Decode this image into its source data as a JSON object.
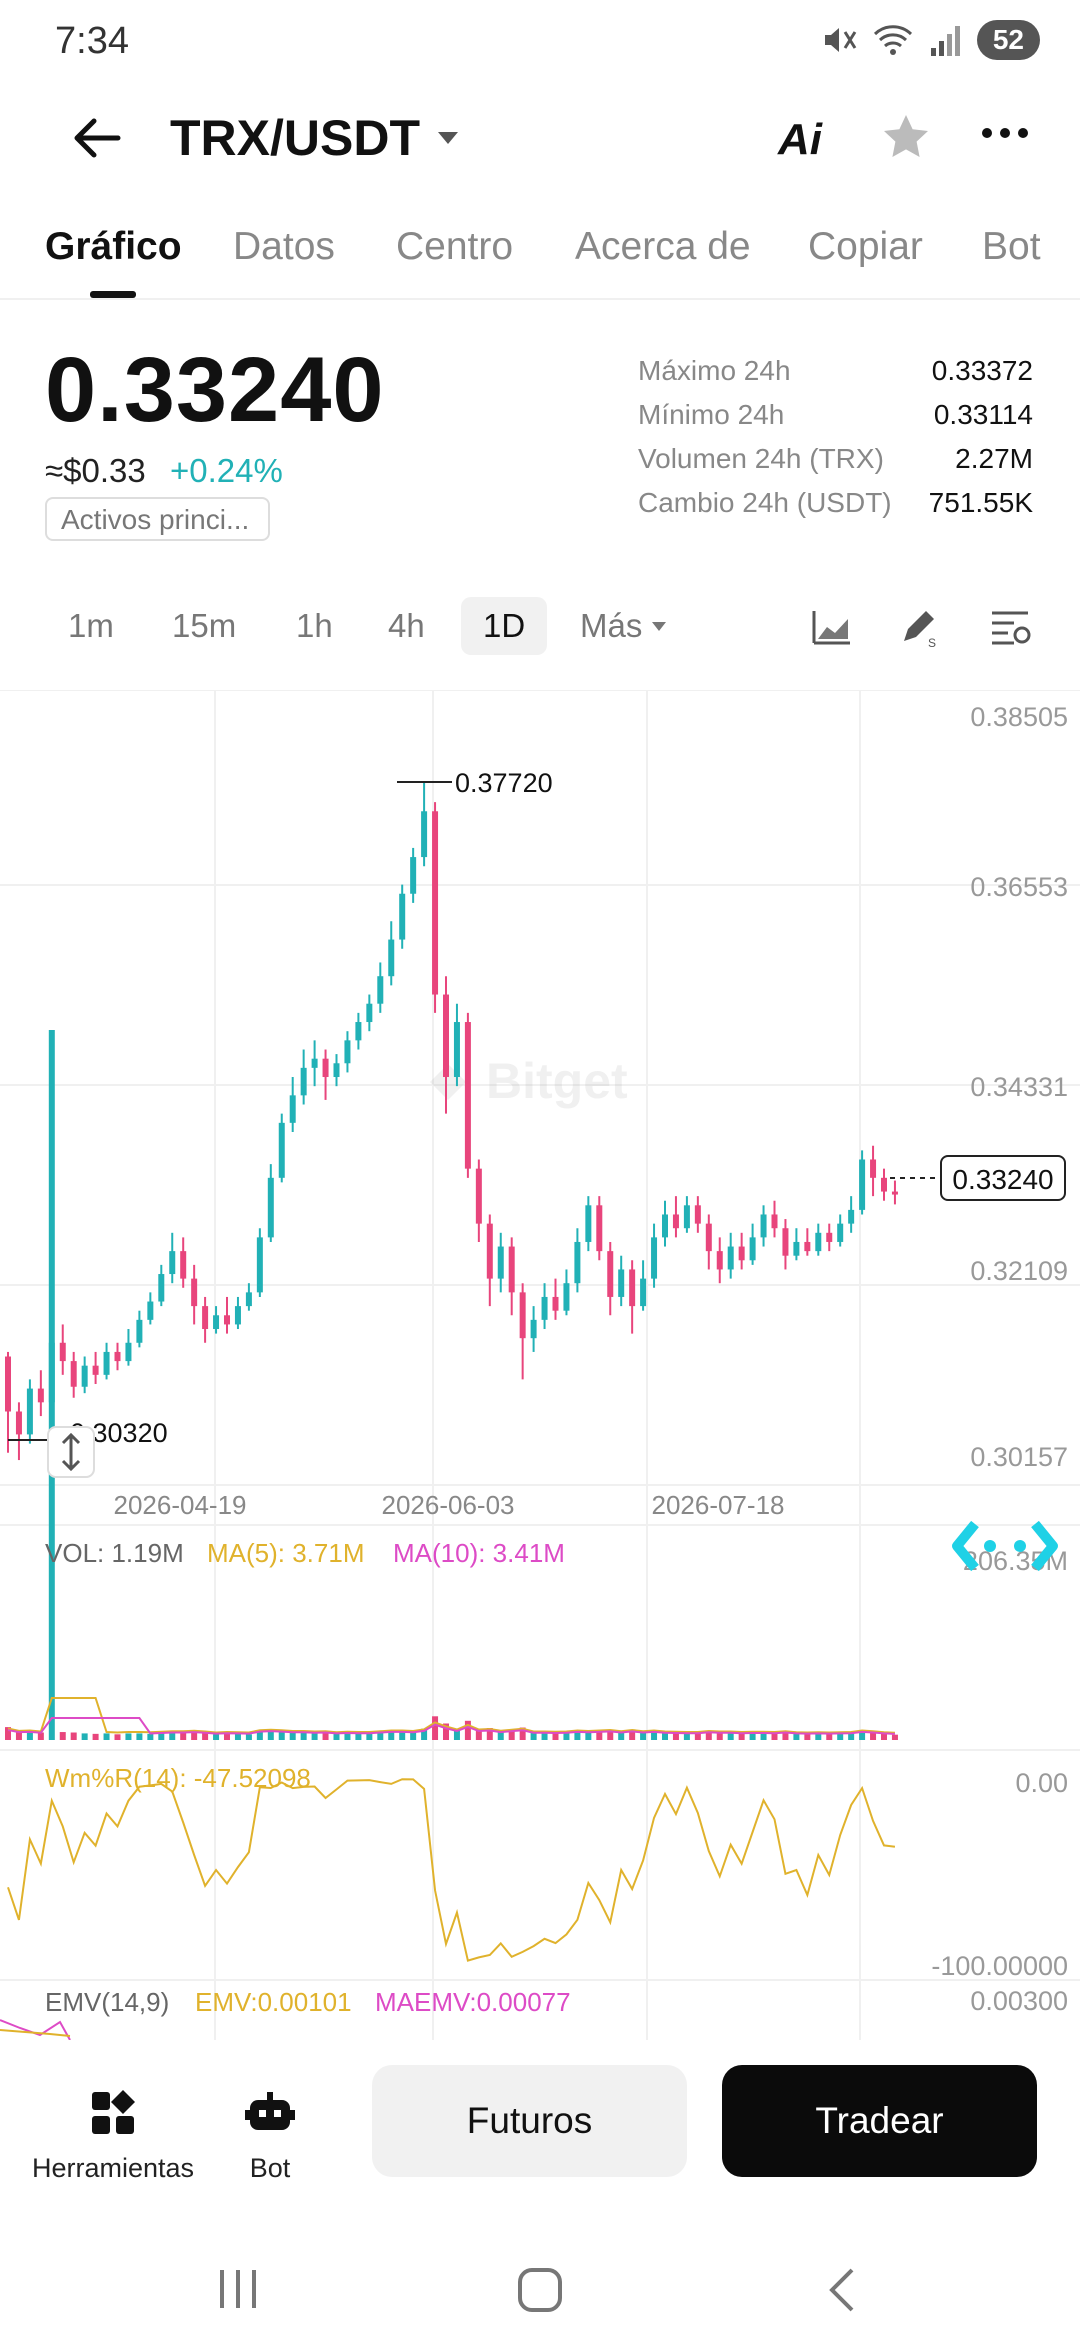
{
  "status": {
    "time": "7:34",
    "battery": "52"
  },
  "header": {
    "pair": "TRX/USDT",
    "ai_label": "Ai"
  },
  "tabs": [
    "Gráfico",
    "Datos",
    "Centro",
    "Acerca de",
    "Copiar",
    "Bot"
  ],
  "price": {
    "last": "0.33240",
    "usd": "≈$0.33",
    "change": "+0.24%",
    "tag": "Activos princi...",
    "stats": [
      {
        "label": "Máximo 24h",
        "value": "0.33372"
      },
      {
        "label": "Mínimo 24h",
        "value": "0.33114"
      },
      {
        "label": "Volumen 24h (TRX)",
        "value": "2.27M"
      },
      {
        "label": "Cambio 24h (USDT)",
        "value": "751.55K"
      }
    ]
  },
  "timeframes": {
    "items": [
      "1m",
      "15m",
      "1h",
      "4h",
      "1D"
    ],
    "active": "1D",
    "more": "Más"
  },
  "chart": {
    "watermark": "Bitget",
    "y_ticks": [
      "0.38505",
      "0.36553",
      "0.34331",
      "0.32109",
      "0.30157"
    ],
    "x_ticks": [
      "2026-04-19",
      "2026-06-03",
      "2026-07-18"
    ],
    "high_marker": "0.37720",
    "low_marker": "0.30320",
    "last_price": "0.33240",
    "colors": {
      "up": "#21b1b6",
      "down": "#e8457c",
      "ma5": "#e0b22c",
      "ma10": "#dd4bc6"
    }
  },
  "chart_data": {
    "type": "candlestick",
    "y_range": [
      0.30157,
      0.38505
    ],
    "candles": [
      {
        "o": 0.3145,
        "c": 0.3085,
        "h": 0.315,
        "l": 0.304
      },
      {
        "o": 0.3085,
        "c": 0.306,
        "h": 0.3095,
        "l": 0.3032
      },
      {
        "o": 0.306,
        "c": 0.311,
        "h": 0.312,
        "l": 0.305
      },
      {
        "o": 0.311,
        "c": 0.3095,
        "h": 0.313,
        "l": 0.308
      },
      {
        "o": 0.3095,
        "c": 0.316,
        "h": 0.318,
        "l": 0.309
      },
      {
        "o": 0.316,
        "c": 0.314,
        "h": 0.318,
        "l": 0.3125
      },
      {
        "o": 0.314,
        "c": 0.3112,
        "h": 0.315,
        "l": 0.31
      },
      {
        "o": 0.3112,
        "c": 0.3135,
        "h": 0.3145,
        "l": 0.3105
      },
      {
        "o": 0.3135,
        "c": 0.3125,
        "h": 0.315,
        "l": 0.3115
      },
      {
        "o": 0.3125,
        "c": 0.315,
        "h": 0.316,
        "l": 0.312
      },
      {
        "o": 0.315,
        "c": 0.314,
        "h": 0.316,
        "l": 0.313
      },
      {
        "o": 0.314,
        "c": 0.316,
        "h": 0.3175,
        "l": 0.3135
      },
      {
        "o": 0.316,
        "c": 0.3185,
        "h": 0.3195,
        "l": 0.3155
      },
      {
        "o": 0.3185,
        "c": 0.3205,
        "h": 0.3215,
        "l": 0.318
      },
      {
        "o": 0.3205,
        "c": 0.3235,
        "h": 0.3245,
        "l": 0.32
      },
      {
        "o": 0.3235,
        "c": 0.326,
        "h": 0.328,
        "l": 0.3225
      },
      {
        "o": 0.326,
        "c": 0.323,
        "h": 0.3275,
        "l": 0.322
      },
      {
        "o": 0.323,
        "c": 0.32,
        "h": 0.3245,
        "l": 0.318
      },
      {
        "o": 0.32,
        "c": 0.3175,
        "h": 0.321,
        "l": 0.316
      },
      {
        "o": 0.3175,
        "c": 0.319,
        "h": 0.32,
        "l": 0.317
      },
      {
        "o": 0.319,
        "c": 0.318,
        "h": 0.321,
        "l": 0.317
      },
      {
        "o": 0.318,
        "c": 0.32,
        "h": 0.321,
        "l": 0.3175
      },
      {
        "o": 0.32,
        "c": 0.3215,
        "h": 0.3225,
        "l": 0.3195
      },
      {
        "o": 0.3215,
        "c": 0.3275,
        "h": 0.3285,
        "l": 0.321
      },
      {
        "o": 0.3275,
        "c": 0.334,
        "h": 0.3355,
        "l": 0.327
      },
      {
        "o": 0.334,
        "c": 0.34,
        "h": 0.341,
        "l": 0.3335
      },
      {
        "o": 0.34,
        "c": 0.343,
        "h": 0.345,
        "l": 0.339
      },
      {
        "o": 0.343,
        "c": 0.346,
        "h": 0.348,
        "l": 0.342
      },
      {
        "o": 0.346,
        "c": 0.347,
        "h": 0.349,
        "l": 0.344
      },
      {
        "o": 0.347,
        "c": 0.345,
        "h": 0.348,
        "l": 0.3425
      },
      {
        "o": 0.345,
        "c": 0.3465,
        "h": 0.3475,
        "l": 0.344
      },
      {
        "o": 0.3465,
        "c": 0.349,
        "h": 0.35,
        "l": 0.3455
      },
      {
        "o": 0.349,
        "c": 0.351,
        "h": 0.352,
        "l": 0.348
      },
      {
        "o": 0.351,
        "c": 0.353,
        "h": 0.354,
        "l": 0.35
      },
      {
        "o": 0.353,
        "c": 0.356,
        "h": 0.3575,
        "l": 0.352
      },
      {
        "o": 0.356,
        "c": 0.36,
        "h": 0.362,
        "l": 0.355
      },
      {
        "o": 0.36,
        "c": 0.365,
        "h": 0.366,
        "l": 0.359
      },
      {
        "o": 0.365,
        "c": 0.369,
        "h": 0.37,
        "l": 0.364
      },
      {
        "o": 0.369,
        "c": 0.374,
        "h": 0.3772,
        "l": 0.368
      },
      {
        "o": 0.374,
        "c": 0.354,
        "h": 0.375,
        "l": 0.352
      },
      {
        "o": 0.354,
        "c": 0.345,
        "h": 0.356,
        "l": 0.341
      },
      {
        "o": 0.345,
        "c": 0.351,
        "h": 0.353,
        "l": 0.344
      },
      {
        "o": 0.351,
        "c": 0.335,
        "h": 0.352,
        "l": 0.334
      },
      {
        "o": 0.335,
        "c": 0.329,
        "h": 0.336,
        "l": 0.327
      },
      {
        "o": 0.329,
        "c": 0.323,
        "h": 0.33,
        "l": 0.32
      },
      {
        "o": 0.323,
        "c": 0.3265,
        "h": 0.328,
        "l": 0.3215
      },
      {
        "o": 0.3265,
        "c": 0.3215,
        "h": 0.3275,
        "l": 0.319
      },
      {
        "o": 0.3215,
        "c": 0.3165,
        "h": 0.3225,
        "l": 0.312
      },
      {
        "o": 0.3165,
        "c": 0.3185,
        "h": 0.32,
        "l": 0.315
      },
      {
        "o": 0.3185,
        "c": 0.321,
        "h": 0.3225,
        "l": 0.3175
      },
      {
        "o": 0.321,
        "c": 0.3195,
        "h": 0.323,
        "l": 0.3185
      },
      {
        "o": 0.3195,
        "c": 0.3225,
        "h": 0.324,
        "l": 0.319
      },
      {
        "o": 0.3225,
        "c": 0.327,
        "h": 0.3285,
        "l": 0.3215
      },
      {
        "o": 0.327,
        "c": 0.331,
        "h": 0.332,
        "l": 0.326
      },
      {
        "o": 0.331,
        "c": 0.326,
        "h": 0.332,
        "l": 0.325
      },
      {
        "o": 0.326,
        "c": 0.321,
        "h": 0.327,
        "l": 0.319
      },
      {
        "o": 0.321,
        "c": 0.324,
        "h": 0.3255,
        "l": 0.32
      },
      {
        "o": 0.324,
        "c": 0.32,
        "h": 0.325,
        "l": 0.317
      },
      {
        "o": 0.32,
        "c": 0.323,
        "h": 0.325,
        "l": 0.3195
      },
      {
        "o": 0.323,
        "c": 0.3275,
        "h": 0.329,
        "l": 0.322
      },
      {
        "o": 0.3275,
        "c": 0.33,
        "h": 0.3315,
        "l": 0.3265
      },
      {
        "o": 0.33,
        "c": 0.3285,
        "h": 0.332,
        "l": 0.3275
      },
      {
        "o": 0.3285,
        "c": 0.331,
        "h": 0.332,
        "l": 0.328
      },
      {
        "o": 0.331,
        "c": 0.329,
        "h": 0.332,
        "l": 0.328
      },
      {
        "o": 0.329,
        "c": 0.326,
        "h": 0.33,
        "l": 0.324
      },
      {
        "o": 0.326,
        "c": 0.324,
        "h": 0.3275,
        "l": 0.3225
      },
      {
        "o": 0.324,
        "c": 0.3265,
        "h": 0.328,
        "l": 0.323
      },
      {
        "o": 0.3265,
        "c": 0.325,
        "h": 0.328,
        "l": 0.324
      },
      {
        "o": 0.325,
        "c": 0.3275,
        "h": 0.329,
        "l": 0.3245
      },
      {
        "o": 0.3275,
        "c": 0.33,
        "h": 0.331,
        "l": 0.3265
      },
      {
        "o": 0.33,
        "c": 0.3285,
        "h": 0.3315,
        "l": 0.3275
      },
      {
        "o": 0.3285,
        "c": 0.3255,
        "h": 0.3295,
        "l": 0.324
      },
      {
        "o": 0.3255,
        "c": 0.327,
        "h": 0.3285,
        "l": 0.325
      },
      {
        "o": 0.327,
        "c": 0.326,
        "h": 0.3285,
        "l": 0.3255
      },
      {
        "o": 0.326,
        "c": 0.328,
        "h": 0.329,
        "l": 0.3255
      },
      {
        "o": 0.328,
        "c": 0.327,
        "h": 0.329,
        "l": 0.326
      },
      {
        "o": 0.327,
        "c": 0.329,
        "h": 0.33,
        "l": 0.3265
      },
      {
        "o": 0.329,
        "c": 0.3305,
        "h": 0.332,
        "l": 0.328
      },
      {
        "o": 0.3305,
        "c": 0.336,
        "h": 0.337,
        "l": 0.33
      },
      {
        "o": 0.336,
        "c": 0.334,
        "h": 0.3375,
        "l": 0.332
      },
      {
        "o": 0.334,
        "c": 0.3325,
        "h": 0.335,
        "l": 0.3315
      },
      {
        "o": 0.3325,
        "c": 0.3324,
        "h": 0.3337,
        "l": 0.3311
      }
    ],
    "volume_panel": {
      "vol": "VOL: 1.19M",
      "ma5": "MA(5): 3.71M",
      "ma10": "MA(10): 3.41M",
      "max_label": "206.35M"
    },
    "wr_panel": {
      "label": "Wm%R(14): -47.52098",
      "top": "0.00",
      "bottom": "-100.00000"
    },
    "emv_panel": {
      "label": "EMV(14,9)",
      "emv": "EMV:0.00101",
      "maemv": "MAEMV:0.00077",
      "top": "0.00300"
    }
  },
  "bottom": {
    "tools_label": "Herramientas",
    "bot_label": "Bot",
    "futures_label": "Futuros",
    "trade_label": "Tradear"
  }
}
